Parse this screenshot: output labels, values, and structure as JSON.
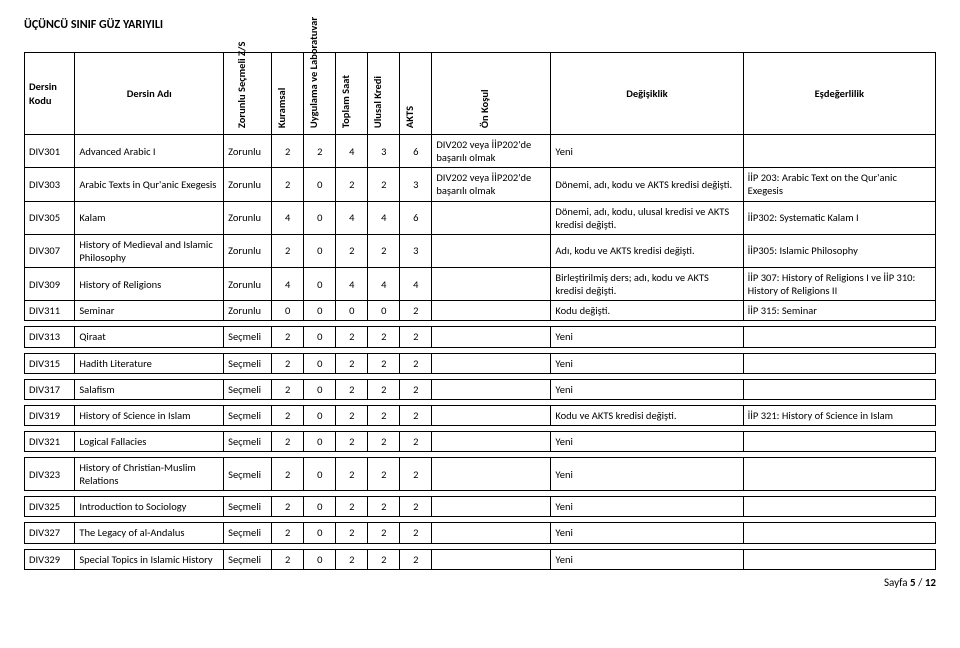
{
  "page": {
    "title": "ÜÇÜNCÜ SINIF GÜZ YARIYILI",
    "footer_prefix": "Sayfa ",
    "footer_page": "5",
    "footer_sep": " / ",
    "footer_total": "12"
  },
  "headers": {
    "kodu": "Dersin Kodu",
    "adi": "Dersin Adı",
    "zs": "Zorunlu Seçmeli Z/S",
    "kuramsal": "Kuramsal",
    "uyg": "Uygulama ve Laboratuvar",
    "toplam": "Toplam Saat",
    "ulusal": "Ulusal Kredi",
    "akts": "AKTS",
    "onkosul": "Ön Koşul",
    "degisiklik": "Değişiklik",
    "esdeger": "Eşdeğerlilik"
  },
  "rows": [
    {
      "kod": "DIV301",
      "ad": "Advanced Arabic I",
      "zs": "Zorunlu",
      "k": "2",
      "u": "2",
      "t": "4",
      "uk": "3",
      "a": "6",
      "on": "DIV202 veya İİP202'de başarılı olmak",
      "deg": "Yeni",
      "esd": ""
    },
    {
      "kod": "DIV303",
      "ad": "Arabic Texts in Qur'anic Exegesis",
      "zs": "Zorunlu",
      "k": "2",
      "u": "0",
      "t": "2",
      "uk": "2",
      "a": "3",
      "on": "DIV202 veya İİP202'de başarılı olmak",
      "deg": "Dönemi, adı, kodu ve AKTS kredisi değişti.",
      "esd": "İİP 203: Arabic Text on the Qur'anic Exegesis"
    },
    {
      "kod": "DIV305",
      "ad": "Kalam",
      "zs": "Zorunlu",
      "k": "4",
      "u": "0",
      "t": "4",
      "uk": "4",
      "a": "6",
      "on": "",
      "deg": "Dönemi, adı, kodu, ulusal kredisi ve AKTS kredisi değişti.",
      "esd": "İİP302: Systematic Kalam I"
    },
    {
      "kod": "DIV307",
      "ad": "History of Medieval and Islamic Philosophy",
      "zs": "Zorunlu",
      "k": "2",
      "u": "0",
      "t": "2",
      "uk": "2",
      "a": "3",
      "on": "",
      "deg": "Adı, kodu ve AKTS kredisi değişti.",
      "esd": "İİP305: Islamic Philosophy"
    },
    {
      "kod": "DIV309",
      "ad": "History of Religions",
      "zs": "Zorunlu",
      "k": "4",
      "u": "0",
      "t": "4",
      "uk": "4",
      "a": "4",
      "on": "",
      "deg": "Birleştirilmiş ders; adı, kodu ve AKTS kredisi değişti.",
      "esd": "İİP 307: History of Religions I ve İİP 310: History of Religions II"
    },
    {
      "kod": "DIV311",
      "ad": "Seminar",
      "zs": "Zorunlu",
      "k": "0",
      "u": "0",
      "t": "0",
      "uk": "0",
      "a": "2",
      "on": "",
      "deg": "Kodu değişti.",
      "esd": "İİP 315: Seminar"
    },
    {
      "spacer": true
    },
    {
      "kod": "DIV313",
      "ad": "Qiraat",
      "zs": "Seçmeli",
      "k": "2",
      "u": "0",
      "t": "2",
      "uk": "2",
      "a": "2",
      "on": "",
      "deg": "Yeni",
      "esd": ""
    },
    {
      "spacer": true
    },
    {
      "kod": "DIV315",
      "ad": "Hadith Literature",
      "zs": "Seçmeli",
      "k": "2",
      "u": "0",
      "t": "2",
      "uk": "2",
      "a": "2",
      "on": "",
      "deg": "Yeni",
      "esd": ""
    },
    {
      "spacer": true
    },
    {
      "kod": "DIV317",
      "ad": "Salafism",
      "zs": "Seçmeli",
      "k": "2",
      "u": "0",
      "t": "2",
      "uk": "2",
      "a": "2",
      "on": "",
      "deg": "Yeni",
      "esd": ""
    },
    {
      "spacer": true
    },
    {
      "kod": "DIV319",
      "ad": "History of Science in Islam",
      "zs": "Seçmeli",
      "k": "2",
      "u": "0",
      "t": "2",
      "uk": "2",
      "a": "2",
      "on": "",
      "deg": "Kodu ve AKTS kredisi değişti.",
      "esd": "İİP 321: History of Science in Islam"
    },
    {
      "spacer": true
    },
    {
      "kod": "DIV321",
      "ad": "Logical Fallacies",
      "zs": "Seçmeli",
      "k": "2",
      "u": "0",
      "t": "2",
      "uk": "2",
      "a": "2",
      "on": "",
      "deg": "Yeni",
      "esd": ""
    },
    {
      "spacer": true
    },
    {
      "kod": "DIV323",
      "ad": "History of Christian-Muslim Relations",
      "zs": "Seçmeli",
      "k": "2",
      "u": "0",
      "t": "2",
      "uk": "2",
      "a": "2",
      "on": "",
      "deg": "Yeni",
      "esd": ""
    },
    {
      "spacer": true
    },
    {
      "kod": "DIV325",
      "ad": "Introduction to Sociology",
      "zs": "Seçmeli",
      "k": "2",
      "u": "0",
      "t": "2",
      "uk": "2",
      "a": "2",
      "on": "",
      "deg": "Yeni",
      "esd": ""
    },
    {
      "spacer": true
    },
    {
      "kod": "DIV327",
      "ad": "The Legacy  of al-Andalus",
      "zs": "Seçmeli",
      "k": "2",
      "u": "0",
      "t": "2",
      "uk": "2",
      "a": "2",
      "on": "",
      "deg": "Yeni",
      "esd": ""
    },
    {
      "spacer": true
    },
    {
      "kod": "DIV329",
      "ad": "Special Topics in Islamic History",
      "zs": "Seçmeli",
      "k": "2",
      "u": "0",
      "t": "2",
      "uk": "2",
      "a": "2",
      "on": "",
      "deg": "Yeni",
      "esd": ""
    }
  ]
}
